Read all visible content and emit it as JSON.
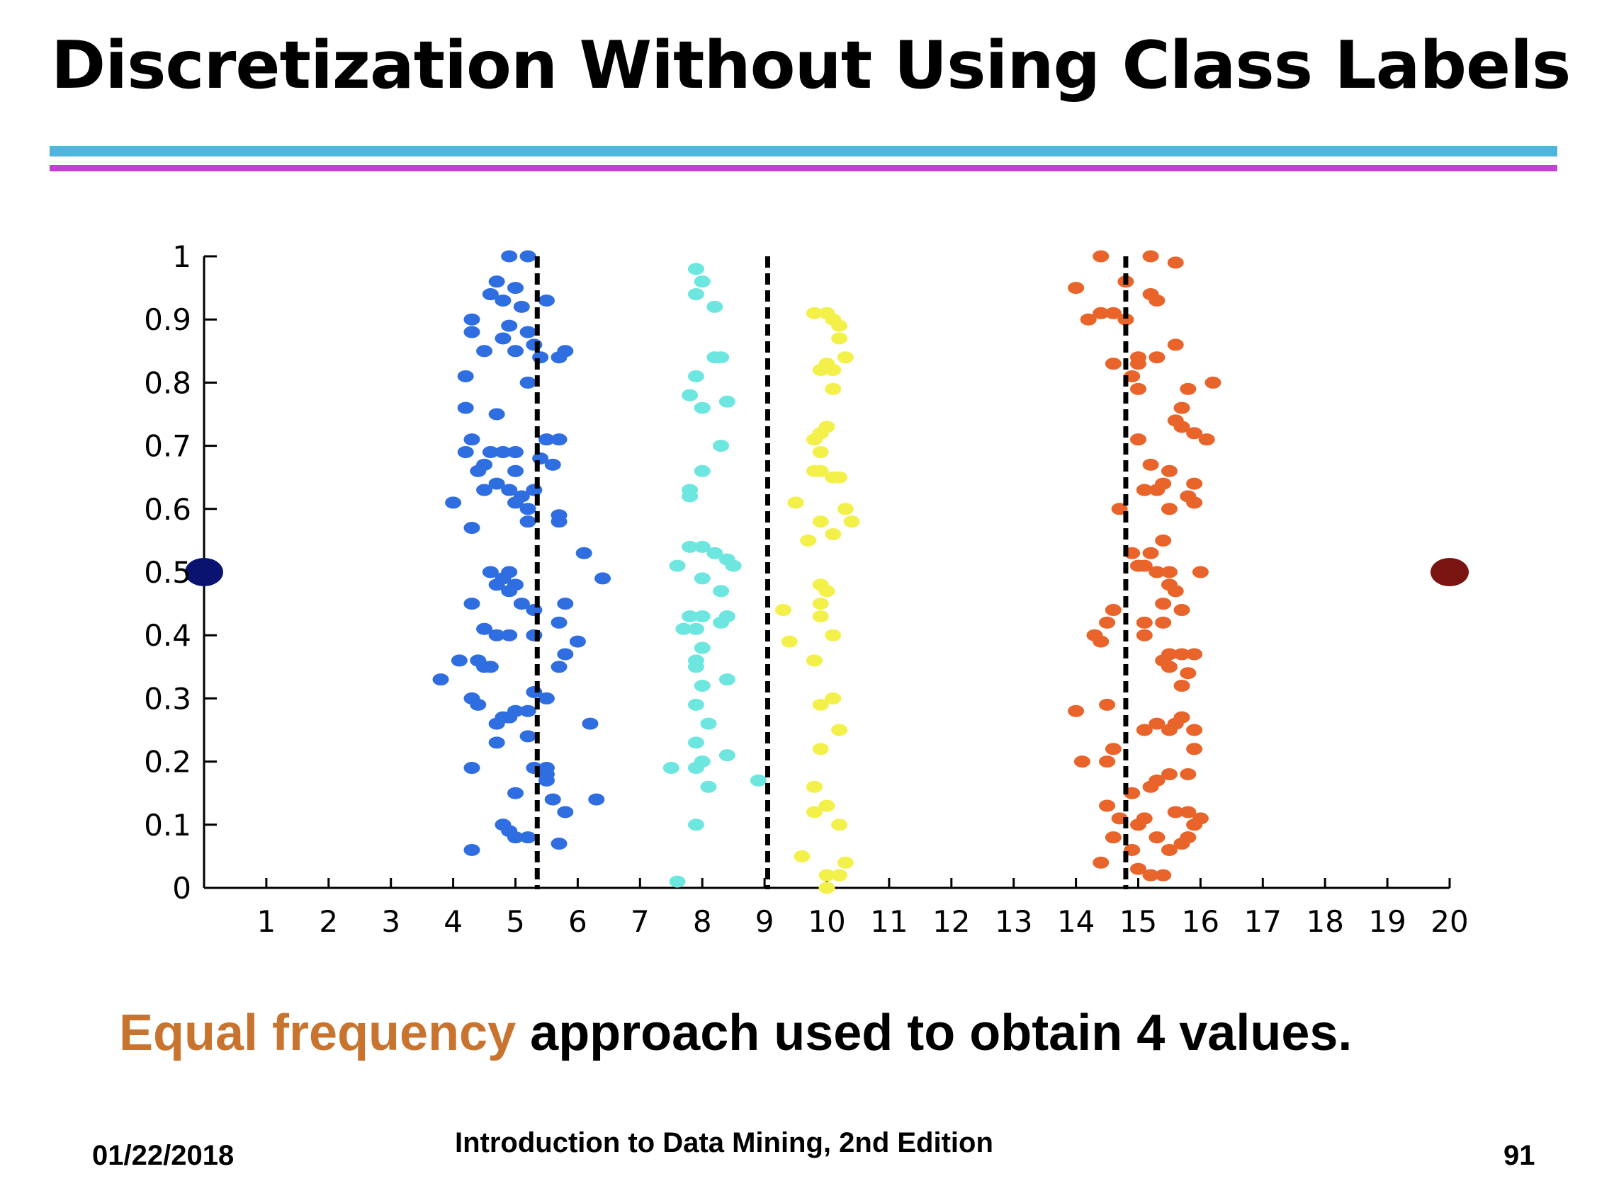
{
  "slide": {
    "title": "Discretization Without Using Class Labels",
    "caption_highlight": "Equal frequency",
    "caption_rest": " approach used to obtain 4 values.",
    "footer_date": "01/22/2018",
    "footer_book": "Introduction to Data Mining, 2nd Edition",
    "footer_page": "91"
  },
  "colors": {
    "rule_blue": "#4db6dc",
    "rule_purple": "#c43fd6",
    "caption_highlight": "#c8742f",
    "endpoint_left": "#0a1470",
    "endpoint_right": "#7a1410",
    "cluster1": "#2f6ee0",
    "cluster2": "#6ee6e0",
    "cluster3": "#f4f04a",
    "cluster4": "#e8642a"
  },
  "chart_data": {
    "type": "scatter",
    "title": "",
    "xlabel": "",
    "ylabel": "",
    "xlim": [
      0,
      20
    ],
    "ylim": [
      0,
      1
    ],
    "x_ticks": [
      "1",
      "2",
      "3",
      "4",
      "5",
      "6",
      "7",
      "8",
      "9",
      "10",
      "11",
      "12",
      "13",
      "14",
      "15",
      "16",
      "17",
      "18",
      "19",
      "20"
    ],
    "y_ticks": [
      "0",
      "0.1",
      "0.2",
      "0.3",
      "0.4",
      "0.5",
      "0.6",
      "0.7",
      "0.8",
      "0.9",
      "1"
    ],
    "grid": false,
    "split_lines_x": [
      5.35,
      9.05,
      14.8
    ],
    "endpoints": [
      {
        "x": 0,
        "y": 0.5,
        "color_key": "endpoint_left"
      },
      {
        "x": 20,
        "y": 0.5,
        "color_key": "endpoint_right"
      }
    ],
    "series": [
      {
        "color_key": "cluster1",
        "points": [
          [
            4.9,
            1.0
          ],
          [
            5.2,
            1.0
          ],
          [
            4.7,
            0.96
          ],
          [
            5.0,
            0.95
          ],
          [
            4.6,
            0.94
          ],
          [
            4.8,
            0.93
          ],
          [
            5.5,
            0.93
          ],
          [
            5.1,
            0.92
          ],
          [
            4.3,
            0.9
          ],
          [
            4.9,
            0.89
          ],
          [
            5.2,
            0.88
          ],
          [
            4.3,
            0.88
          ],
          [
            4.8,
            0.87
          ],
          [
            5.3,
            0.86
          ],
          [
            5.8,
            0.85
          ],
          [
            4.5,
            0.85
          ],
          [
            5.0,
            0.85
          ],
          [
            5.4,
            0.84
          ],
          [
            5.7,
            0.84
          ],
          [
            4.2,
            0.81
          ],
          [
            5.2,
            0.8
          ],
          [
            4.2,
            0.76
          ],
          [
            4.7,
            0.75
          ],
          [
            5.5,
            0.71
          ],
          [
            5.7,
            0.71
          ],
          [
            4.3,
            0.71
          ],
          [
            4.8,
            0.69
          ],
          [
            5.0,
            0.69
          ],
          [
            4.6,
            0.69
          ],
          [
            4.2,
            0.69
          ],
          [
            5.4,
            0.68
          ],
          [
            4.5,
            0.67
          ],
          [
            5.6,
            0.67
          ],
          [
            5.0,
            0.66
          ],
          [
            4.4,
            0.66
          ],
          [
            4.7,
            0.64
          ],
          [
            5.3,
            0.63
          ],
          [
            4.5,
            0.63
          ],
          [
            4.9,
            0.63
          ],
          [
            5.1,
            0.62
          ],
          [
            4.0,
            0.61
          ],
          [
            5.0,
            0.61
          ],
          [
            5.2,
            0.6
          ],
          [
            5.7,
            0.59
          ],
          [
            5.2,
            0.58
          ],
          [
            5.7,
            0.58
          ],
          [
            4.3,
            0.57
          ],
          [
            6.1,
            0.53
          ],
          [
            6.4,
            0.49
          ],
          [
            4.6,
            0.5
          ],
          [
            4.9,
            0.5
          ],
          [
            4.8,
            0.49
          ],
          [
            5.0,
            0.48
          ],
          [
            4.7,
            0.48
          ],
          [
            4.9,
            0.47
          ],
          [
            5.1,
            0.45
          ],
          [
            5.3,
            0.44
          ],
          [
            4.3,
            0.45
          ],
          [
            5.8,
            0.45
          ],
          [
            5.7,
            0.42
          ],
          [
            4.5,
            0.41
          ],
          [
            4.7,
            0.4
          ],
          [
            4.9,
            0.4
          ],
          [
            5.3,
            0.4
          ],
          [
            6.0,
            0.39
          ],
          [
            5.8,
            0.37
          ],
          [
            4.1,
            0.36
          ],
          [
            4.4,
            0.36
          ],
          [
            4.5,
            0.35
          ],
          [
            4.6,
            0.35
          ],
          [
            5.7,
            0.35
          ],
          [
            3.8,
            0.33
          ],
          [
            5.3,
            0.31
          ],
          [
            5.5,
            0.3
          ],
          [
            4.3,
            0.3
          ],
          [
            4.4,
            0.29
          ],
          [
            5.0,
            0.28
          ],
          [
            5.2,
            0.28
          ],
          [
            4.8,
            0.27
          ],
          [
            4.9,
            0.27
          ],
          [
            4.7,
            0.26
          ],
          [
            6.2,
            0.26
          ],
          [
            5.2,
            0.24
          ],
          [
            4.7,
            0.23
          ],
          [
            5.3,
            0.19
          ],
          [
            5.5,
            0.19
          ],
          [
            4.3,
            0.19
          ],
          [
            5.5,
            0.18
          ],
          [
            5.5,
            0.17
          ],
          [
            5.0,
            0.15
          ],
          [
            5.6,
            0.14
          ],
          [
            6.3,
            0.14
          ],
          [
            5.8,
            0.12
          ],
          [
            4.8,
            0.1
          ],
          [
            4.9,
            0.09
          ],
          [
            5.0,
            0.08
          ],
          [
            5.2,
            0.08
          ],
          [
            5.7,
            0.07
          ],
          [
            4.3,
            0.06
          ]
        ]
      },
      {
        "color_key": "cluster2",
        "points": [
          [
            7.9,
            0.98
          ],
          [
            8.0,
            0.96
          ],
          [
            7.9,
            0.94
          ],
          [
            8.2,
            0.92
          ],
          [
            8.2,
            0.84
          ],
          [
            8.3,
            0.84
          ],
          [
            7.9,
            0.81
          ],
          [
            7.8,
            0.78
          ],
          [
            8.4,
            0.77
          ],
          [
            8.0,
            0.76
          ],
          [
            8.3,
            0.7
          ],
          [
            8.0,
            0.66
          ],
          [
            7.8,
            0.63
          ],
          [
            7.8,
            0.62
          ],
          [
            7.8,
            0.54
          ],
          [
            8.0,
            0.54
          ],
          [
            8.2,
            0.53
          ],
          [
            8.4,
            0.52
          ],
          [
            7.6,
            0.51
          ],
          [
            8.5,
            0.51
          ],
          [
            8.0,
            0.49
          ],
          [
            8.3,
            0.47
          ],
          [
            7.8,
            0.43
          ],
          [
            8.0,
            0.43
          ],
          [
            8.4,
            0.43
          ],
          [
            8.3,
            0.42
          ],
          [
            7.7,
            0.41
          ],
          [
            7.9,
            0.41
          ],
          [
            8.0,
            0.38
          ],
          [
            7.9,
            0.36
          ],
          [
            7.9,
            0.35
          ],
          [
            8.4,
            0.33
          ],
          [
            8.0,
            0.32
          ],
          [
            7.9,
            0.29
          ],
          [
            8.1,
            0.26
          ],
          [
            7.9,
            0.23
          ],
          [
            8.0,
            0.2
          ],
          [
            8.4,
            0.21
          ],
          [
            7.9,
            0.19
          ],
          [
            7.5,
            0.19
          ],
          [
            8.1,
            0.16
          ],
          [
            8.9,
            0.17
          ],
          [
            7.9,
            0.1
          ],
          [
            7.6,
            0.01
          ]
        ]
      },
      {
        "color_key": "cluster3",
        "points": [
          [
            9.8,
            0.91
          ],
          [
            10.0,
            0.91
          ],
          [
            10.1,
            0.9
          ],
          [
            10.2,
            0.89
          ],
          [
            10.2,
            0.87
          ],
          [
            10.3,
            0.84
          ],
          [
            10.0,
            0.83
          ],
          [
            9.9,
            0.82
          ],
          [
            10.1,
            0.82
          ],
          [
            10.1,
            0.79
          ],
          [
            10.0,
            0.73
          ],
          [
            9.9,
            0.72
          ],
          [
            9.8,
            0.71
          ],
          [
            9.9,
            0.69
          ],
          [
            9.8,
            0.66
          ],
          [
            9.9,
            0.66
          ],
          [
            10.1,
            0.65
          ],
          [
            10.2,
            0.65
          ],
          [
            9.5,
            0.61
          ],
          [
            10.3,
            0.6
          ],
          [
            10.4,
            0.58
          ],
          [
            10.1,
            0.56
          ],
          [
            9.9,
            0.58
          ],
          [
            9.7,
            0.55
          ],
          [
            9.9,
            0.48
          ],
          [
            10.0,
            0.47
          ],
          [
            9.9,
            0.45
          ],
          [
            9.3,
            0.44
          ],
          [
            9.9,
            0.43
          ],
          [
            10.1,
            0.4
          ],
          [
            9.4,
            0.39
          ],
          [
            9.8,
            0.36
          ],
          [
            10.1,
            0.3
          ],
          [
            9.9,
            0.29
          ],
          [
            10.2,
            0.25
          ],
          [
            9.9,
            0.22
          ],
          [
            9.8,
            0.16
          ],
          [
            10.0,
            0.13
          ],
          [
            9.8,
            0.12
          ],
          [
            10.2,
            0.1
          ],
          [
            9.6,
            0.05
          ],
          [
            10.3,
            0.04
          ],
          [
            10.0,
            0.02
          ],
          [
            10.2,
            0.02
          ],
          [
            10.0,
            0.0
          ]
        ]
      },
      {
        "color_key": "cluster4",
        "points": [
          [
            14.4,
            1.0
          ],
          [
            15.2,
            1.0
          ],
          [
            15.6,
            0.99
          ],
          [
            14.8,
            0.96
          ],
          [
            14.0,
            0.95
          ],
          [
            15.2,
            0.94
          ],
          [
            15.3,
            0.93
          ],
          [
            14.4,
            0.91
          ],
          [
            14.6,
            0.91
          ],
          [
            14.2,
            0.9
          ],
          [
            14.8,
            0.9
          ],
          [
            15.6,
            0.86
          ],
          [
            15.0,
            0.84
          ],
          [
            15.3,
            0.84
          ],
          [
            14.6,
            0.83
          ],
          [
            15.0,
            0.83
          ],
          [
            14.9,
            0.81
          ],
          [
            15.0,
            0.79
          ],
          [
            15.8,
            0.79
          ],
          [
            16.2,
            0.8
          ],
          [
            15.7,
            0.76
          ],
          [
            15.6,
            0.74
          ],
          [
            15.7,
            0.73
          ],
          [
            15.9,
            0.72
          ],
          [
            15.0,
            0.71
          ],
          [
            16.1,
            0.71
          ],
          [
            15.2,
            0.67
          ],
          [
            15.5,
            0.66
          ],
          [
            15.4,
            0.64
          ],
          [
            15.9,
            0.64
          ],
          [
            15.1,
            0.63
          ],
          [
            15.3,
            0.63
          ],
          [
            15.8,
            0.62
          ],
          [
            15.9,
            0.61
          ],
          [
            14.7,
            0.6
          ],
          [
            15.5,
            0.6
          ],
          [
            15.4,
            0.55
          ],
          [
            14.9,
            0.53
          ],
          [
            15.2,
            0.53
          ],
          [
            15.0,
            0.51
          ],
          [
            15.1,
            0.51
          ],
          [
            15.3,
            0.5
          ],
          [
            15.5,
            0.5
          ],
          [
            16.0,
            0.5
          ],
          [
            15.5,
            0.48
          ],
          [
            15.6,
            0.47
          ],
          [
            15.4,
            0.45
          ],
          [
            14.6,
            0.44
          ],
          [
            15.7,
            0.44
          ],
          [
            14.5,
            0.42
          ],
          [
            15.1,
            0.42
          ],
          [
            15.4,
            0.42
          ],
          [
            14.3,
            0.4
          ],
          [
            14.4,
            0.39
          ],
          [
            15.1,
            0.4
          ],
          [
            15.5,
            0.37
          ],
          [
            15.7,
            0.37
          ],
          [
            15.9,
            0.37
          ],
          [
            15.4,
            0.36
          ],
          [
            15.5,
            0.35
          ],
          [
            15.8,
            0.34
          ],
          [
            15.7,
            0.32
          ],
          [
            14.5,
            0.29
          ],
          [
            14.0,
            0.28
          ],
          [
            15.7,
            0.27
          ],
          [
            15.3,
            0.26
          ],
          [
            15.6,
            0.26
          ],
          [
            15.1,
            0.25
          ],
          [
            15.5,
            0.25
          ],
          [
            15.9,
            0.25
          ],
          [
            14.6,
            0.22
          ],
          [
            15.9,
            0.22
          ],
          [
            14.5,
            0.2
          ],
          [
            14.1,
            0.2
          ],
          [
            15.5,
            0.18
          ],
          [
            15.3,
            0.17
          ],
          [
            15.8,
            0.18
          ],
          [
            15.2,
            0.16
          ],
          [
            14.9,
            0.15
          ],
          [
            14.5,
            0.13
          ],
          [
            14.7,
            0.11
          ],
          [
            15.8,
            0.12
          ],
          [
            15.6,
            0.12
          ],
          [
            15.1,
            0.11
          ],
          [
            16.0,
            0.11
          ],
          [
            15.0,
            0.1
          ],
          [
            15.9,
            0.1
          ],
          [
            14.6,
            0.08
          ],
          [
            15.3,
            0.08
          ],
          [
            15.8,
            0.08
          ],
          [
            15.7,
            0.07
          ],
          [
            14.9,
            0.06
          ],
          [
            15.5,
            0.06
          ],
          [
            14.4,
            0.04
          ],
          [
            15.0,
            0.03
          ],
          [
            15.2,
            0.02
          ],
          [
            15.4,
            0.02
          ]
        ]
      }
    ]
  }
}
